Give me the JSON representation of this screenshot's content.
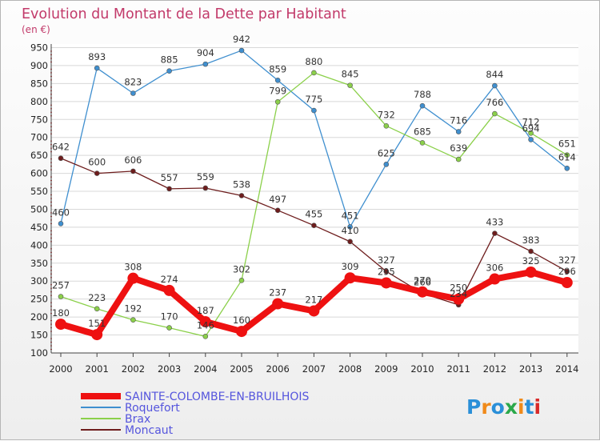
{
  "chart_data": {
    "type": "line",
    "title": "Evolution du Montant de la Dette par Habitant",
    "subtitle": "(en €)",
    "categories": [
      "2000",
      "2001",
      "2002",
      "2003",
      "2004",
      "2005",
      "2006",
      "2007",
      "2008",
      "2009",
      "2010",
      "2011",
      "2012",
      "2013",
      "2014"
    ],
    "yticks": [
      100,
      150,
      200,
      250,
      300,
      350,
      400,
      450,
      500,
      550,
      600,
      650,
      700,
      750,
      800,
      850,
      900,
      950
    ],
    "ylim": [
      100,
      960
    ],
    "grid": "horizontal",
    "legend_position": "bottom",
    "series": [
      {
        "name": "Roquefort",
        "color": "#3f8fcf",
        "values": [
          460,
          893,
          823,
          885,
          904,
          942,
          859,
          775,
          451,
          625,
          788,
          716,
          844,
          694,
          614
        ],
        "labels": [
          "460",
          "893",
          "823",
          "885",
          "904",
          "942",
          "859",
          "775",
          "451",
          "625",
          "788",
          "716",
          "844",
          "694",
          "614"
        ]
      },
      {
        "name": "Brax",
        "color": "#8bd04a",
        "values": [
          257,
          223,
          192,
          170,
          146,
          302,
          799,
          880,
          845,
          732,
          685,
          639,
          766,
          712,
          651
        ],
        "labels": [
          "257",
          "223",
          "192",
          "170",
          "146",
          "302",
          "799",
          "880",
          "845",
          "732",
          "685",
          "639",
          "766",
          "712",
          "651"
        ]
      },
      {
        "name": "Moncaut",
        "color": "#6e1d1d",
        "values": [
          642,
          600,
          606,
          557,
          559,
          538,
          497,
          455,
          410,
          327,
          266,
          234,
          433,
          383,
          327
        ],
        "labels": [
          "642",
          "600",
          "606",
          "557",
          "559",
          "538",
          "497",
          "455",
          "410",
          "327",
          "266",
          "234",
          "433",
          "383",
          "327"
        ]
      },
      {
        "name": "SAINTE-COLOMBE-EN-BRUILHOIS",
        "color": "#ee1111",
        "values": [
          180,
          151,
          308,
          274,
          187,
          160,
          237,
          217,
          309,
          295,
          270,
          250,
          306,
          325,
          296
        ],
        "labels": [
          "180",
          "151",
          "308",
          "274",
          "187",
          "160",
          "237",
          "217",
          "309",
          "295",
          "270",
          "250",
          "306",
          "325",
          "296"
        ]
      }
    ],
    "legend": [
      {
        "name": "SAINTE-COLOMBE-EN-BRUILHOIS",
        "color": "#ee1111"
      },
      {
        "name": "Roquefort",
        "color": "#3f8fcf"
      },
      {
        "name": "Brax",
        "color": "#8bd04a"
      },
      {
        "name": "Moncaut",
        "color": "#6e1d1d"
      }
    ],
    "legend_text_color": "#5555dd",
    "logo": {
      "text": "Proxiti",
      "colors": [
        "#2a8fd8",
        "#f08a1a",
        "#2a8fd8",
        "#2aa84a",
        "#f08a1a",
        "#2a8fd8",
        "#d82a2a"
      ]
    }
  }
}
